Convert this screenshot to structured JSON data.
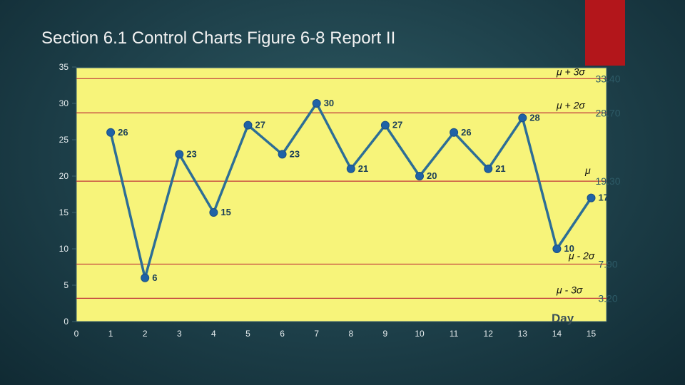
{
  "slide": {
    "title": "Section 6.1 Control Charts Figure 6-8 Report II"
  },
  "chart_data": {
    "type": "line",
    "title": "",
    "xlabel": "Day",
    "ylabel": "",
    "x": [
      1,
      2,
      3,
      4,
      5,
      6,
      7,
      8,
      9,
      10,
      11,
      12,
      13,
      14,
      15
    ],
    "values": [
      26,
      6,
      23,
      15,
      27,
      23,
      30,
      21,
      27,
      20,
      26,
      21,
      28,
      10,
      17
    ],
    "data_labels": [
      "26",
      "6",
      "23",
      "15",
      "27",
      "23",
      "30",
      "21",
      "27",
      "20",
      "26",
      "21",
      "28",
      "10",
      "17"
    ],
    "xlim": [
      0,
      15
    ],
    "ylim": [
      0,
      35
    ],
    "xticks": [
      "0",
      "1",
      "2",
      "3",
      "4",
      "5",
      "6",
      "7",
      "8",
      "9",
      "10",
      "11",
      "12",
      "13",
      "14",
      "15"
    ],
    "yticks": [
      "0",
      "5",
      "10",
      "15",
      "20",
      "25",
      "30",
      "35"
    ],
    "control_lines": [
      {
        "label": "μ + 3σ",
        "value": 33.4,
        "value_text": "33.40"
      },
      {
        "label": "μ + 2σ",
        "value": 28.7,
        "value_text": "28.70"
      },
      {
        "label": "μ",
        "value": 19.3,
        "value_text": "19.30"
      },
      {
        "label": "μ - 2σ",
        "value": 7.9,
        "value_text": "7.90"
      },
      {
        "label": "μ - 3σ",
        "value": 3.2,
        "value_text": "3.20"
      }
    ],
    "colors": {
      "plot_area": "#f7f47a",
      "series": "#2d6e96",
      "marker": "#1f62a6",
      "control_line": "#c0353a",
      "background": "#1d3f49",
      "accent": "#b3161b"
    },
    "grid": false,
    "legend": "none"
  }
}
